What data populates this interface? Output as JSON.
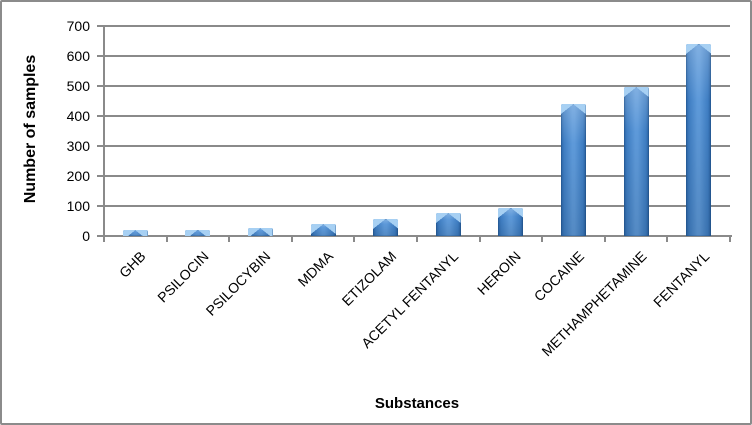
{
  "window": {
    "background": "#ffffff",
    "border_color": "#8b8b8b"
  },
  "chart_data": {
    "type": "bar",
    "title": "",
    "xlabel": "Substances",
    "ylabel": "Number of samples",
    "categories": [
      "GHB",
      "PSILOCIN",
      "PSILOCYBIN",
      "MDMA",
      "ETIZOLAM",
      "ACETYL FENTANYL",
      "HEROIN",
      "COCAINE",
      "METHAMPHETAMINE",
      "FENTANYL"
    ],
    "values": [
      20,
      20,
      25,
      40,
      55,
      75,
      95,
      440,
      495,
      640
    ],
    "ylim": [
      0,
      700
    ],
    "yticks": [
      0,
      100,
      200,
      300,
      400,
      500,
      600,
      700
    ],
    "grid": "horizontal",
    "legend": "none",
    "category_label_rotation_deg": 45,
    "colors": {
      "bar_fill": "#3e7dc2",
      "bar_highlight": "#a7d0f3",
      "bar_edge": "#27619f",
      "gridline": "#8a8a8a",
      "axis": "#8a8a8a",
      "text": "#000000"
    }
  }
}
